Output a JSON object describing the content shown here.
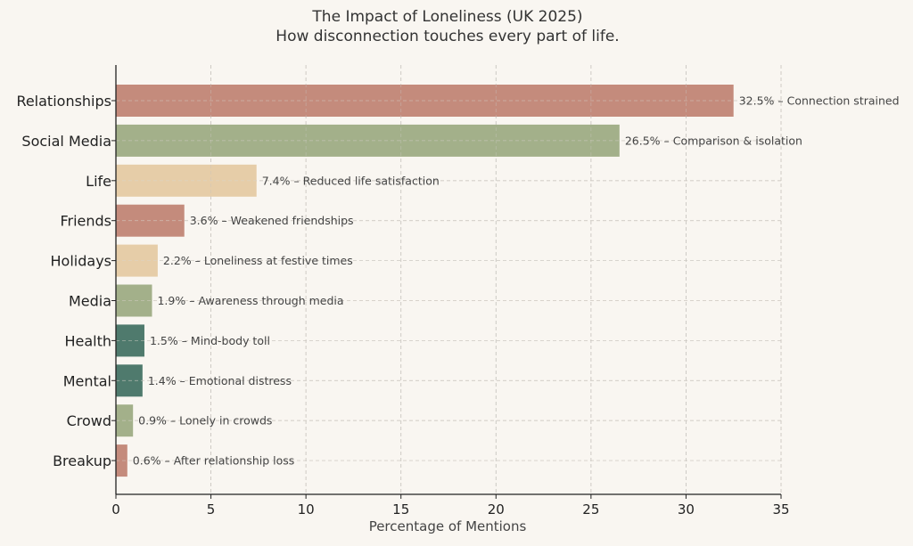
{
  "chart_data": {
    "type": "bar",
    "orientation": "horizontal",
    "title": "The Impact of Loneliness (UK 2025)",
    "subtitle": "How disconnection touches every part of life.",
    "xlabel": "Percentage of Mentions",
    "ylabel": "",
    "xlim": [
      0,
      35
    ],
    "xticks": [
      0,
      5,
      10,
      15,
      20,
      25,
      30,
      35
    ],
    "grid": true,
    "categories": [
      "Relationships",
      "Social Media",
      "Life",
      "Friends",
      "Holidays",
      "Media",
      "Health",
      "Mental",
      "Crowd",
      "Breakup"
    ],
    "values": [
      32.5,
      26.5,
      7.4,
      3.6,
      2.2,
      1.9,
      1.5,
      1.4,
      0.9,
      0.6
    ],
    "data_labels": [
      "32.5% – Connection strained",
      "26.5% – Comparison & isolation",
      "7.4% – Reduced life satisfaction",
      "3.6% – Weakened friendships",
      "2.2% – Loneliness at festive times",
      "1.9% – Awareness through media",
      "1.5% – Mind-body toll",
      "1.4% – Emotional distress",
      "0.9% – Lonely in crowds",
      "0.6% – After relationship loss"
    ],
    "colors": [
      "#c48b7c",
      "#a3b08a",
      "#e6cda8",
      "#c48b7c",
      "#e6cda8",
      "#a3b08a",
      "#4f7a6d",
      "#4f7a6d",
      "#a3b08a",
      "#c48b7c"
    ]
  }
}
